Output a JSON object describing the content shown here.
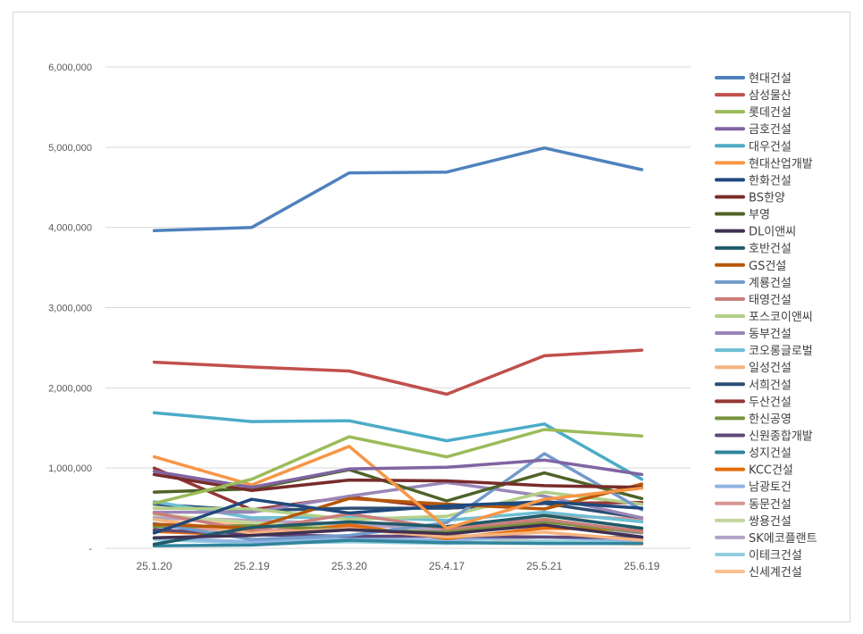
{
  "chart_data": {
    "type": "line",
    "title": "",
    "xlabel": "",
    "ylabel": "",
    "ylim": [
      0,
      6000000
    ],
    "yticks": [
      0,
      1000000,
      2000000,
      3000000,
      4000000,
      5000000,
      6000000
    ],
    "ytick_labels": [
      "-",
      "1,000,000",
      "2,000,000",
      "3,000,000",
      "4,000,000",
      "5,000,000",
      "6,000,000"
    ],
    "grid": "horizontal",
    "legend_position": "right",
    "categories": [
      "25.1.20",
      "25.2.19",
      "25.3.20",
      "25.4.17",
      "25.5.21",
      "25.6.19"
    ],
    "series": [
      {
        "name": "현대건설",
        "color": "#4f81bd",
        "values": [
          3960000,
          4000000,
          4680000,
          4690000,
          4990000,
          4720000
        ]
      },
      {
        "name": "삼성물산",
        "color": "#c0504d",
        "values": [
          2320000,
          2260000,
          2210000,
          1920000,
          2400000,
          2470000
        ]
      },
      {
        "name": "롯데건설",
        "color": "#9bbb59",
        "values": [
          560000,
          860000,
          1390000,
          1140000,
          1480000,
          1400000
        ]
      },
      {
        "name": "금호건설",
        "color": "#8064a2",
        "values": [
          960000,
          760000,
          990000,
          1010000,
          1100000,
          920000
        ]
      },
      {
        "name": "대우건설",
        "color": "#4bacc6",
        "values": [
          1690000,
          1580000,
          1590000,
          1340000,
          1550000,
          860000
        ]
      },
      {
        "name": "현대산업개발",
        "color": "#f79646",
        "values": [
          1140000,
          790000,
          1270000,
          250000,
          610000,
          750000
        ]
      },
      {
        "name": "한화건설",
        "color": "#1f497d",
        "values": [
          190000,
          610000,
          440000,
          530000,
          580000,
          500000
        ]
      },
      {
        "name": "BS한양",
        "color": "#772c2a",
        "values": [
          920000,
          720000,
          850000,
          840000,
          780000,
          760000
        ]
      },
      {
        "name": "부영",
        "color": "#4f6228",
        "values": [
          700000,
          740000,
          980000,
          590000,
          940000,
          620000
        ]
      },
      {
        "name": "DL이앤씨",
        "color": "#403152",
        "values": [
          130000,
          160000,
          230000,
          180000,
          290000,
          140000
        ]
      },
      {
        "name": "호반건설",
        "color": "#215968",
        "values": [
          50000,
          260000,
          330000,
          270000,
          410000,
          250000
        ]
      },
      {
        "name": "GS건설",
        "color": "#b65708",
        "values": [
          300000,
          250000,
          620000,
          550000,
          490000,
          800000
        ]
      },
      {
        "name": "계룡건설",
        "color": "#729aca",
        "values": [
          310000,
          110000,
          160000,
          320000,
          1180000,
          480000
        ]
      },
      {
        "name": "태영건설",
        "color": "#c97e7c",
        "values": [
          440000,
          220000,
          430000,
          240000,
          360000,
          210000
        ]
      },
      {
        "name": "포스코이앤씨",
        "color": "#b3cf88",
        "values": [
          500000,
          490000,
          360000,
          400000,
          700000,
          550000
        ]
      },
      {
        "name": "동부건설",
        "color": "#9a86b8",
        "values": [
          450000,
          450000,
          650000,
          820000,
          650000,
          380000
        ]
      },
      {
        "name": "코오롱글로벌",
        "color": "#6dbed4",
        "values": [
          580000,
          380000,
          390000,
          350000,
          450000,
          330000
        ]
      },
      {
        "name": "일성건설",
        "color": "#f6b47f",
        "values": [
          360000,
          190000,
          240000,
          140000,
          200000,
          100000
        ]
      },
      {
        "name": "서희건설",
        "color": "#2c4d75",
        "values": [
          550000,
          470000,
          500000,
          500000,
          560000,
          380000
        ]
      },
      {
        "name": "두산건설",
        "color": "#953735",
        "values": [
          1000000,
          480000,
          640000,
          500000,
          560000,
          570000
        ]
      },
      {
        "name": "한신공영",
        "color": "#76923c",
        "values": [
          270000,
          280000,
          230000,
          200000,
          330000,
          200000
        ]
      },
      {
        "name": "신원종합개발",
        "color": "#5f497a",
        "values": [
          230000,
          170000,
          150000,
          150000,
          140000,
          130000
        ]
      },
      {
        "name": "성지건설",
        "color": "#31859c",
        "values": [
          30000,
          40000,
          100000,
          70000,
          60000,
          60000
        ]
      },
      {
        "name": "KCC건설",
        "color": "#e36c09",
        "values": [
          210000,
          160000,
          290000,
          120000,
          250000,
          230000
        ]
      },
      {
        "name": "남광토건",
        "color": "#8eb4e3",
        "values": [
          130000,
          80000,
          120000,
          100000,
          140000,
          90000
        ]
      },
      {
        "name": "동문건설",
        "color": "#d99694",
        "values": [
          280000,
          210000,
          270000,
          150000,
          420000,
          360000
        ]
      },
      {
        "name": "쌍용건설",
        "color": "#c3d69b",
        "values": [
          420000,
          320000,
          250000,
          150000,
          380000,
          100000
        ]
      },
      {
        "name": "SK에코플랜트",
        "color": "#b3a2c7",
        "values": [
          380000,
          350000,
          300000,
          230000,
          270000,
          190000
        ]
      },
      {
        "name": "이테크건설",
        "color": "#93cddd",
        "values": [
          110000,
          60000,
          80000,
          60000,
          90000,
          70000
        ]
      },
      {
        "name": "신세계건설",
        "color": "#fac090",
        "values": [
          380000,
          300000,
          260000,
          150000,
          80000,
          50000
        ]
      }
    ]
  }
}
